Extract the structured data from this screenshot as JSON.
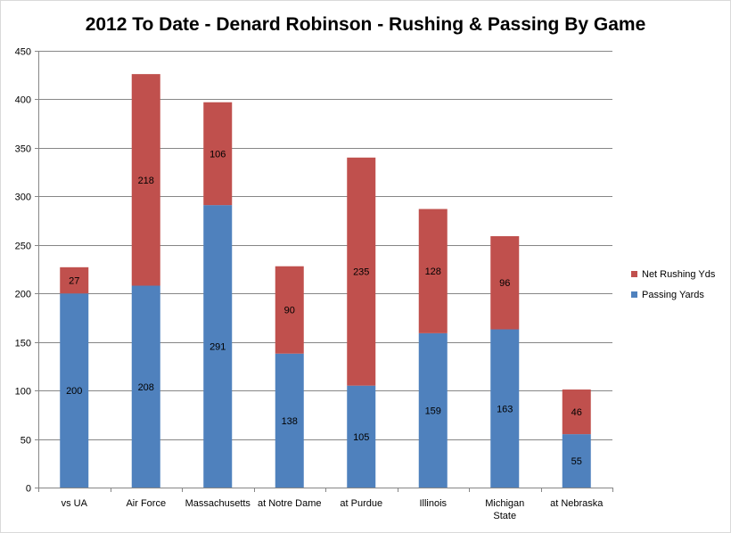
{
  "chart_data": {
    "type": "bar",
    "stacked": true,
    "title": "2012 To Date - Denard Robinson - Rushing & Passing By Game",
    "xlabel": "",
    "ylabel": "",
    "ylim": [
      0,
      450
    ],
    "yticks": [
      "0",
      "50",
      "100",
      "150",
      "200",
      "250",
      "300",
      "350",
      "400",
      "450"
    ],
    "grid": true,
    "legend_position": "right",
    "categories": [
      [
        "vs UA"
      ],
      [
        "Air Force"
      ],
      [
        "Massachusetts"
      ],
      [
        "at Notre Dame"
      ],
      [
        "at Purdue"
      ],
      [
        "Illinois"
      ],
      [
        "Michigan",
        "State"
      ],
      [
        "at Nebraska"
      ]
    ],
    "series": [
      {
        "name": "Passing Yards",
        "color": "#4f81bd",
        "values": [
          200,
          208,
          291,
          138,
          105,
          159,
          163,
          55
        ]
      },
      {
        "name": "Net Rushing Yds",
        "color": "#c0504d",
        "values": [
          27,
          218,
          106,
          90,
          235,
          128,
          96,
          46
        ]
      }
    ],
    "legend_order": [
      1,
      0
    ]
  }
}
